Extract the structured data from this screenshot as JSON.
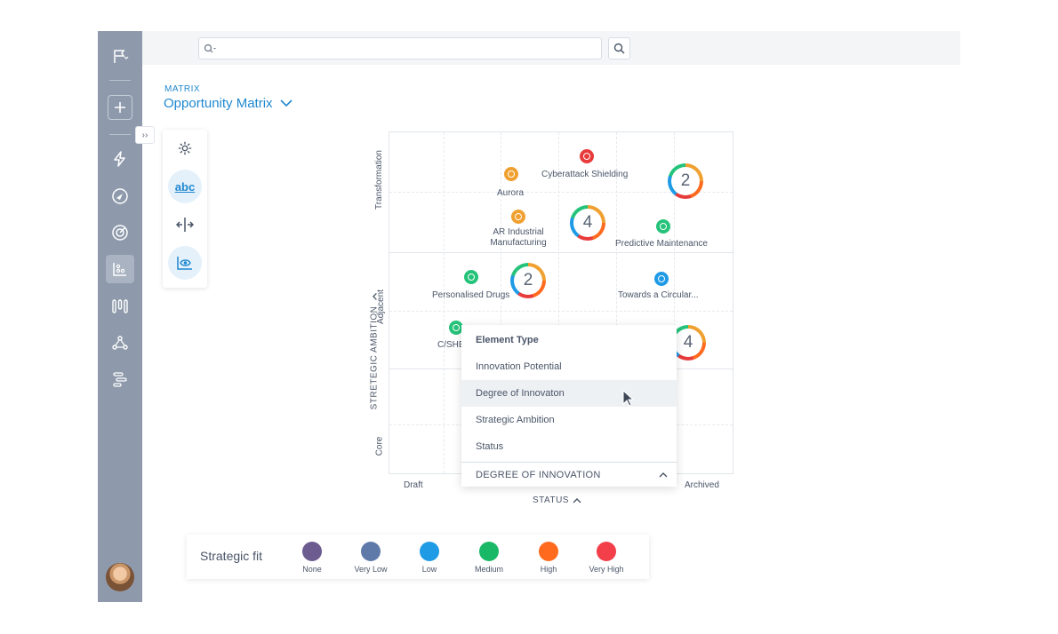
{
  "breadcrumb": "MATRIX",
  "page_title": "Opportunity Matrix",
  "search": {
    "placeholder": ""
  },
  "chart_data": {
    "type": "scatter",
    "ylabel": "STRETEGIC AMBITION",
    "xlabel": "STATUS",
    "y_tick_labels": [
      "Transformation",
      "Adjacent",
      "Core"
    ],
    "x_tick_labels": [
      "Draft",
      "Archived"
    ],
    "points": [
      {
        "label": "Cyberattack Shielding",
        "color": "#e83b3b"
      },
      {
        "label": "Aurora",
        "color": "#f0a030"
      },
      {
        "label": "AR Industrial Manufacturing",
        "color": "#f0a030"
      },
      {
        "label": "Predictive Maintenance",
        "color": "#25c37a"
      },
      {
        "label": "Personalised Drugs",
        "color": "#25c37a"
      },
      {
        "label": "Towards a Circular...",
        "color": "#1f9be6"
      },
      {
        "label": "C/SHE",
        "color": "#25c37a"
      }
    ],
    "clusters": [
      {
        "count": "2"
      },
      {
        "count": "4"
      },
      {
        "count": "2"
      },
      {
        "count": "4"
      }
    ]
  },
  "dropdown": {
    "items": [
      "Element Type",
      "Innovation Potential",
      "Degree of Innovaton",
      "Strategic Ambition",
      "Status"
    ],
    "footer": "DEGREE OF INNOVATION"
  },
  "legend": {
    "title": "Strategic fit",
    "items": [
      {
        "label": "None",
        "color": "#6b5b8f"
      },
      {
        "label": "Very Low",
        "color": "#5f7aa8"
      },
      {
        "label": "Low",
        "color": "#1f9be6"
      },
      {
        "label": "Medium",
        "color": "#19b866"
      },
      {
        "label": "High",
        "color": "#ff6a1e"
      },
      {
        "label": "Very High",
        "color": "#f23f4a"
      }
    ]
  },
  "toolbar": {
    "abc_label": "abc"
  },
  "icons": [
    "flag-icon",
    "plus-icon",
    "lightning-icon",
    "compass-icon",
    "target-icon",
    "chart-icon",
    "columns-icon",
    "network-icon",
    "timeline-icon",
    "gear-icon",
    "split-icon",
    "eye-chart-icon",
    "search-icon"
  ]
}
